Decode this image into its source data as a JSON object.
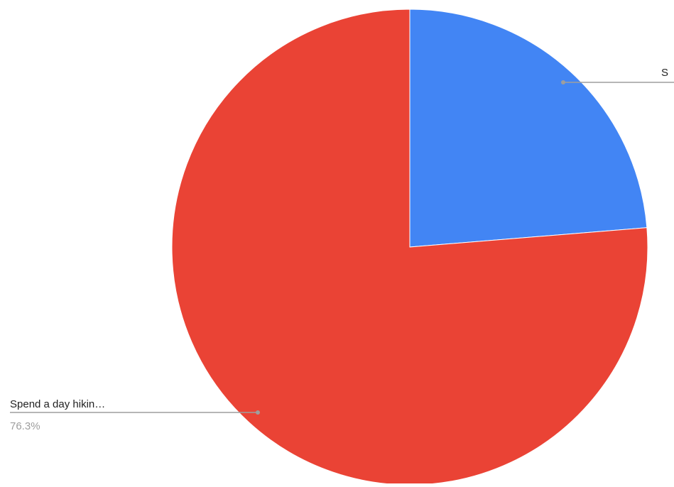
{
  "chart_data": {
    "type": "pie",
    "slices": [
      {
        "label": "S",
        "value": 23.7,
        "color": "#4285f4"
      },
      {
        "label": "Spend a day hikin…",
        "value": 76.3,
        "value_label": "76.3%",
        "color": "#ea4335"
      }
    ]
  }
}
